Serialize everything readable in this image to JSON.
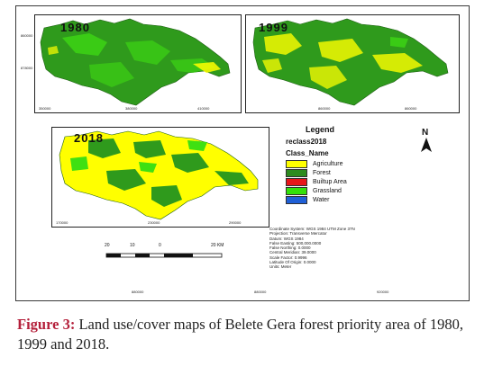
{
  "figure": {
    "maps": [
      {
        "year": "1980",
        "x_ticks": [
          "350000",
          "380000",
          "410000"
        ],
        "y_ticks": [
          "860000",
          "878000"
        ]
      },
      {
        "year": "1999",
        "x_ticks": [
          "860000",
          "860000"
        ],
        "y_ticks": [
          "860000",
          "878000"
        ]
      },
      {
        "year": "2018",
        "x_ticks": [
          "170000",
          "230000",
          "290000"
        ],
        "y_ticks": [
          "860000",
          "878000"
        ]
      }
    ],
    "legend": {
      "title": "Legend",
      "layer": "reclass2018",
      "field": "Class_Name",
      "classes": [
        {
          "label": "Agriculture",
          "color": "#ffff00"
        },
        {
          "label": "Forest",
          "color": "#2e8b1f"
        },
        {
          "label": "Builtup Area",
          "color": "#e8151a"
        },
        {
          "label": "Grassland",
          "color": "#33e00a"
        },
        {
          "label": "Water",
          "color": "#1f5fd6"
        }
      ]
    },
    "north_label": "N",
    "coordinate_info": [
      "Coordinate System: WGS 1984 UTM Zone 37N",
      "Projection: Transverse Mercator",
      "Datum: WGS 1984",
      "False Easting: 500,000.0000",
      "False Northing: 0.0000",
      "Central Meridian: 39.0000",
      "Scale Factor: 0.9996",
      "Latitude Of Origin: 0.0000",
      "Units: Meter"
    ],
    "scale_bar": {
      "labels": [
        "20",
        "10",
        "0",
        "20 KM"
      ]
    },
    "bottom_ticks": [
      "880000",
      "880000",
      "920000"
    ]
  },
  "caption": {
    "label": "Figure 3:",
    "text": " Land use/cover maps of Belete Gera forest priority area of 1980, 1999 and 2018."
  }
}
